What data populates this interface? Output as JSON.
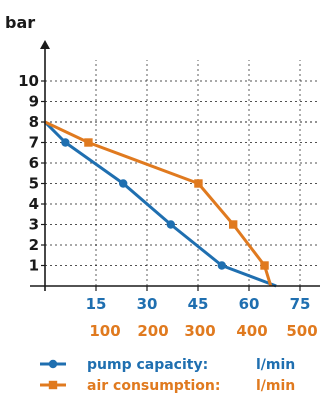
{
  "chart_data": {
    "type": "line",
    "ylabel": "bar",
    "ylim": [
      0,
      11
    ],
    "y_ticks": [
      1,
      2,
      3,
      4,
      5,
      6,
      7,
      8,
      9,
      10
    ],
    "x_axes": [
      {
        "series_ref": "pump capacity",
        "ticks": [
          "15",
          "30",
          "45",
          "60",
          "75"
        ],
        "tick_values": [
          15,
          30,
          45,
          60,
          75
        ],
        "range": [
          0,
          75
        ],
        "color": "#1f6fb0"
      },
      {
        "series_ref": "air consumption",
        "ticks": [
          "100",
          "200",
          "300",
          "400",
          "500"
        ],
        "tick_values": [
          100,
          200,
          300,
          400,
          500
        ],
        "range": [
          0,
          500
        ],
        "color": "#e07a1f"
      }
    ],
    "series": [
      {
        "name": "pump capacity:",
        "unit": "l/min",
        "marker": "circle",
        "color": "#1f6fb0",
        "x": [
          0,
          6,
          23,
          37,
          52,
          68
        ],
        "y": [
          8,
          7,
          5,
          3,
          1,
          0
        ],
        "marked": [
          false,
          true,
          true,
          true,
          true,
          false
        ]
      },
      {
        "name": "air consumption:",
        "unit": "l/min",
        "marker": "square",
        "color": "#e07a1f",
        "x": [
          0,
          90,
          318,
          390,
          455,
          468
        ],
        "y": [
          8,
          7,
          5,
          3,
          1,
          0
        ],
        "marked": [
          false,
          true,
          true,
          true,
          true,
          false
        ]
      }
    ],
    "grid": true
  }
}
